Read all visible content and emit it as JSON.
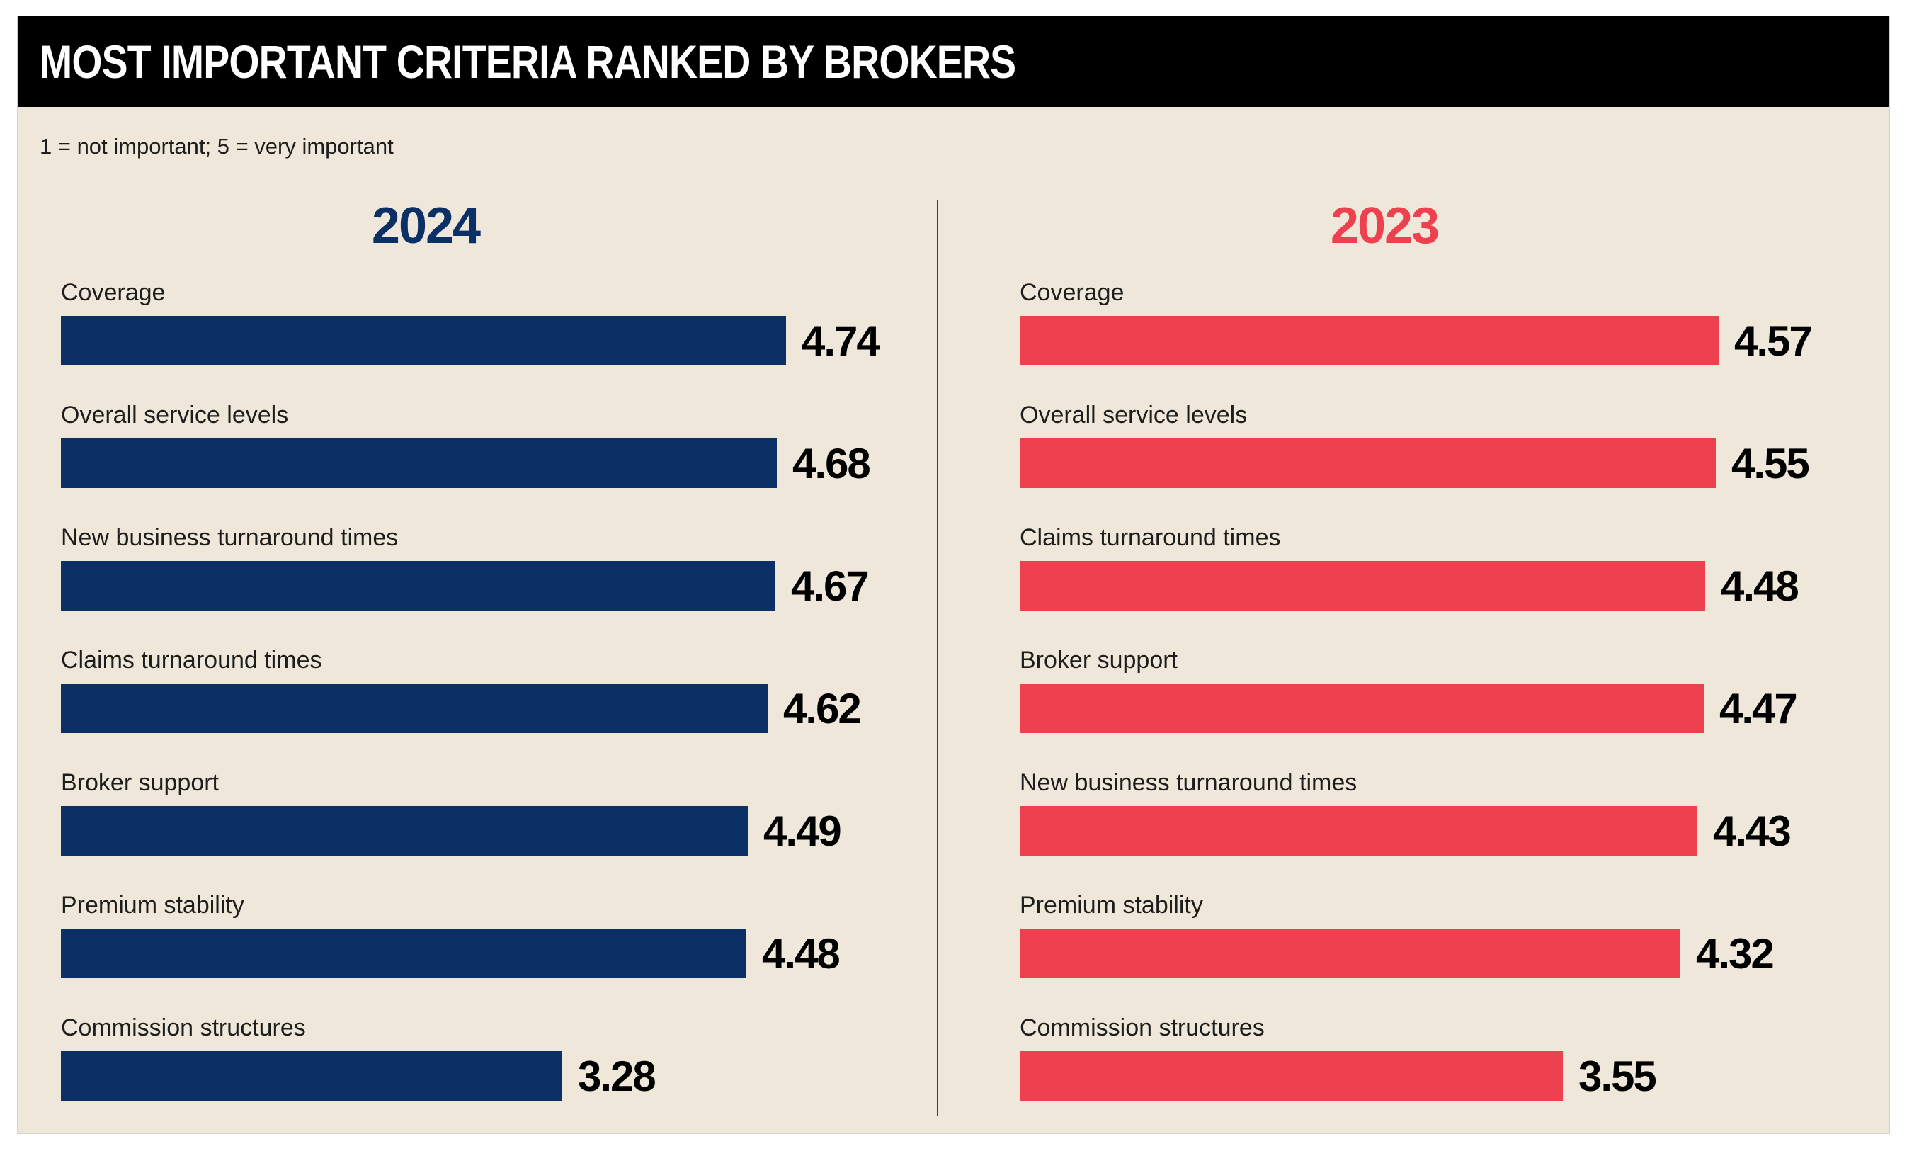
{
  "chart_data": {
    "type": "bar",
    "orientation": "horizontal",
    "title": "MOST IMPORTANT CRITERIA RANKED BY BROKERS",
    "subtitle": "1 = not important; 5 = very important",
    "value_range": [
      0,
      5
    ],
    "legend_position": "column-headers",
    "columns": [
      {
        "year": "2024",
        "color": "#0b3066",
        "items": [
          {
            "label": "Coverage",
            "value": 4.74
          },
          {
            "label": "Overall service levels",
            "value": 4.68
          },
          {
            "label": "New business turnaround times",
            "value": 4.67
          },
          {
            "label": "Claims turnaround times",
            "value": 4.62
          },
          {
            "label": "Broker support",
            "value": 4.49
          },
          {
            "label": "Premium stability",
            "value": 4.48
          },
          {
            "label": "Commission structures",
            "value": 3.28
          }
        ]
      },
      {
        "year": "2023",
        "color": "#ee414f",
        "items": [
          {
            "label": "Coverage",
            "value": 4.57
          },
          {
            "label": "Overall service levels",
            "value": 4.55
          },
          {
            "label": "Claims turnaround times",
            "value": 4.48
          },
          {
            "label": "Broker support",
            "value": 4.47
          },
          {
            "label": "New business turnaround times",
            "value": 4.43
          },
          {
            "label": "Premium stability",
            "value": 4.32
          },
          {
            "label": "Commission structures",
            "value": 3.55
          }
        ]
      }
    ]
  },
  "colors": {
    "background": "#efe8da",
    "panel_border": "#d6d2c8",
    "title_bar": "#000000",
    "title_text": "#ffffff",
    "label_text": "#1d1d1b",
    "value_text": "#000000",
    "divider": "#3f3f3f"
  }
}
